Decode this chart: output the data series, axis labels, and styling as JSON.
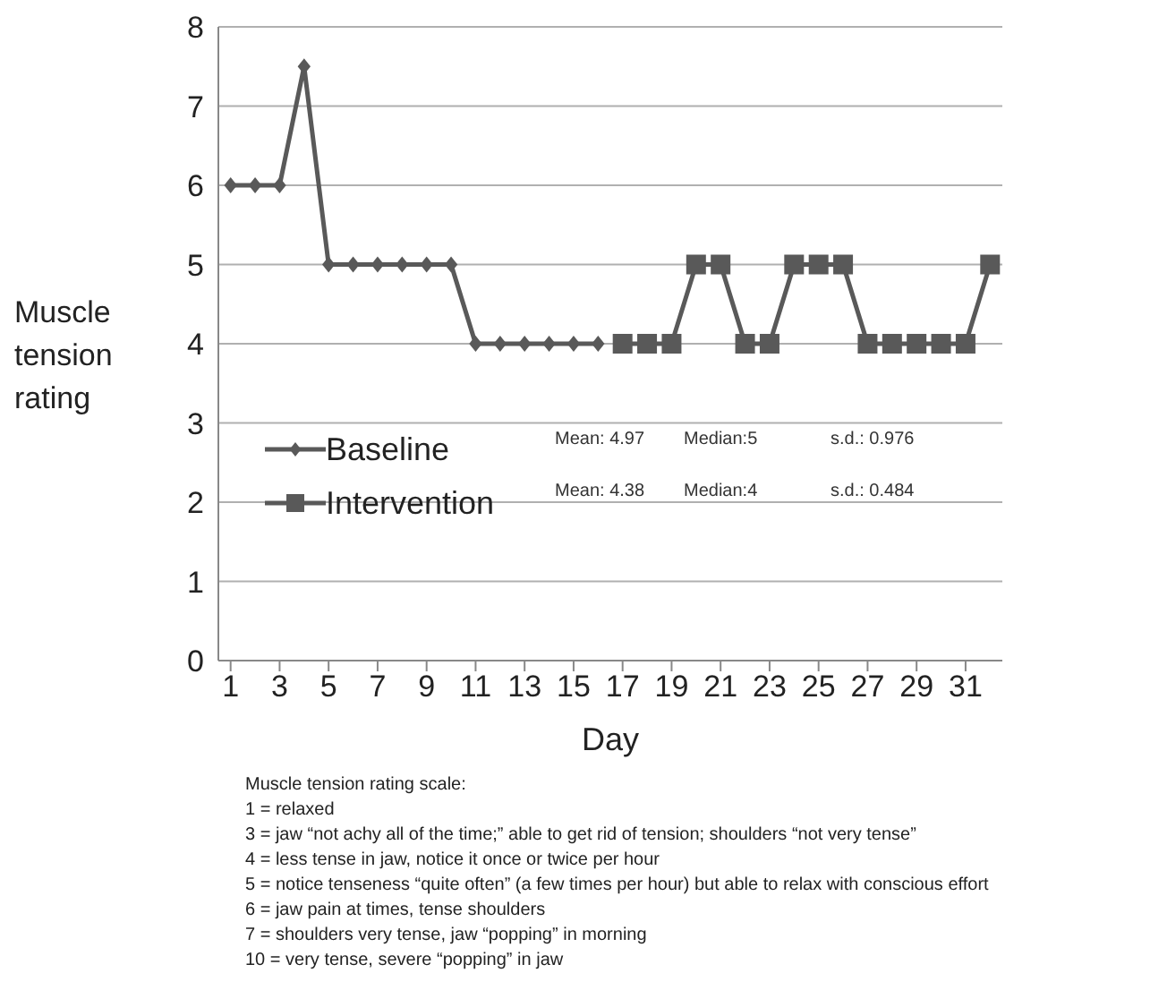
{
  "chart_data": {
    "type": "line",
    "xlabel": "Day",
    "ylabel": "Muscle tension rating",
    "xlim": [
      0.5,
      32.5
    ],
    "xticks": [
      1,
      3,
      5,
      7,
      9,
      11,
      13,
      15,
      17,
      19,
      21,
      23,
      25,
      27,
      29,
      31
    ],
    "ylim": [
      0,
      8
    ],
    "yticks": [
      0,
      1,
      2,
      3,
      4,
      5,
      6,
      7,
      8
    ],
    "grid": "y",
    "legend": "bottom left",
    "series": [
      {
        "name": "Baseline",
        "color": "#595959",
        "marker": "diamond",
        "x": [
          1,
          2,
          3,
          4,
          5,
          6,
          7,
          8,
          9,
          10,
          11,
          12,
          13,
          14,
          15,
          16
        ],
        "values": [
          6,
          6,
          6,
          7.5,
          5,
          5,
          5,
          5,
          5,
          5,
          4,
          4,
          4,
          4,
          4,
          4
        ]
      },
      {
        "name": "Intervention",
        "color": "#595959",
        "marker": "square",
        "x": [
          17,
          18,
          19,
          20,
          21,
          22,
          23,
          24,
          25,
          26,
          27,
          28,
          29,
          30,
          31,
          32
        ],
        "values": [
          4,
          4,
          4,
          5,
          5,
          4,
          4,
          5,
          5,
          5,
          4,
          4,
          4,
          4,
          4,
          5
        ]
      }
    ],
    "annotations": [
      "Mean: 4.97",
      "Median:5",
      "s.d.: 0.976",
      "Mean: 4.38",
      "Median:4",
      "s.d.: 0.484",
      "Muscle tension rating scale:",
      "1 = relaxed",
      "3 = jaw “not achy all of the time;” able to get rid of tension; shoulders “not very tense”",
      "4 = less tense in jaw, notice it once or twice per hour",
      "5 = notice tenseness “quite often” (a few times per hour) but able to relax with conscious effort",
      "6 = jaw pain at times, tense shoulders",
      "7 = shoulders very tense, jaw “popping” in morning",
      "10 = very tense, severe “popping” in jaw"
    ]
  }
}
